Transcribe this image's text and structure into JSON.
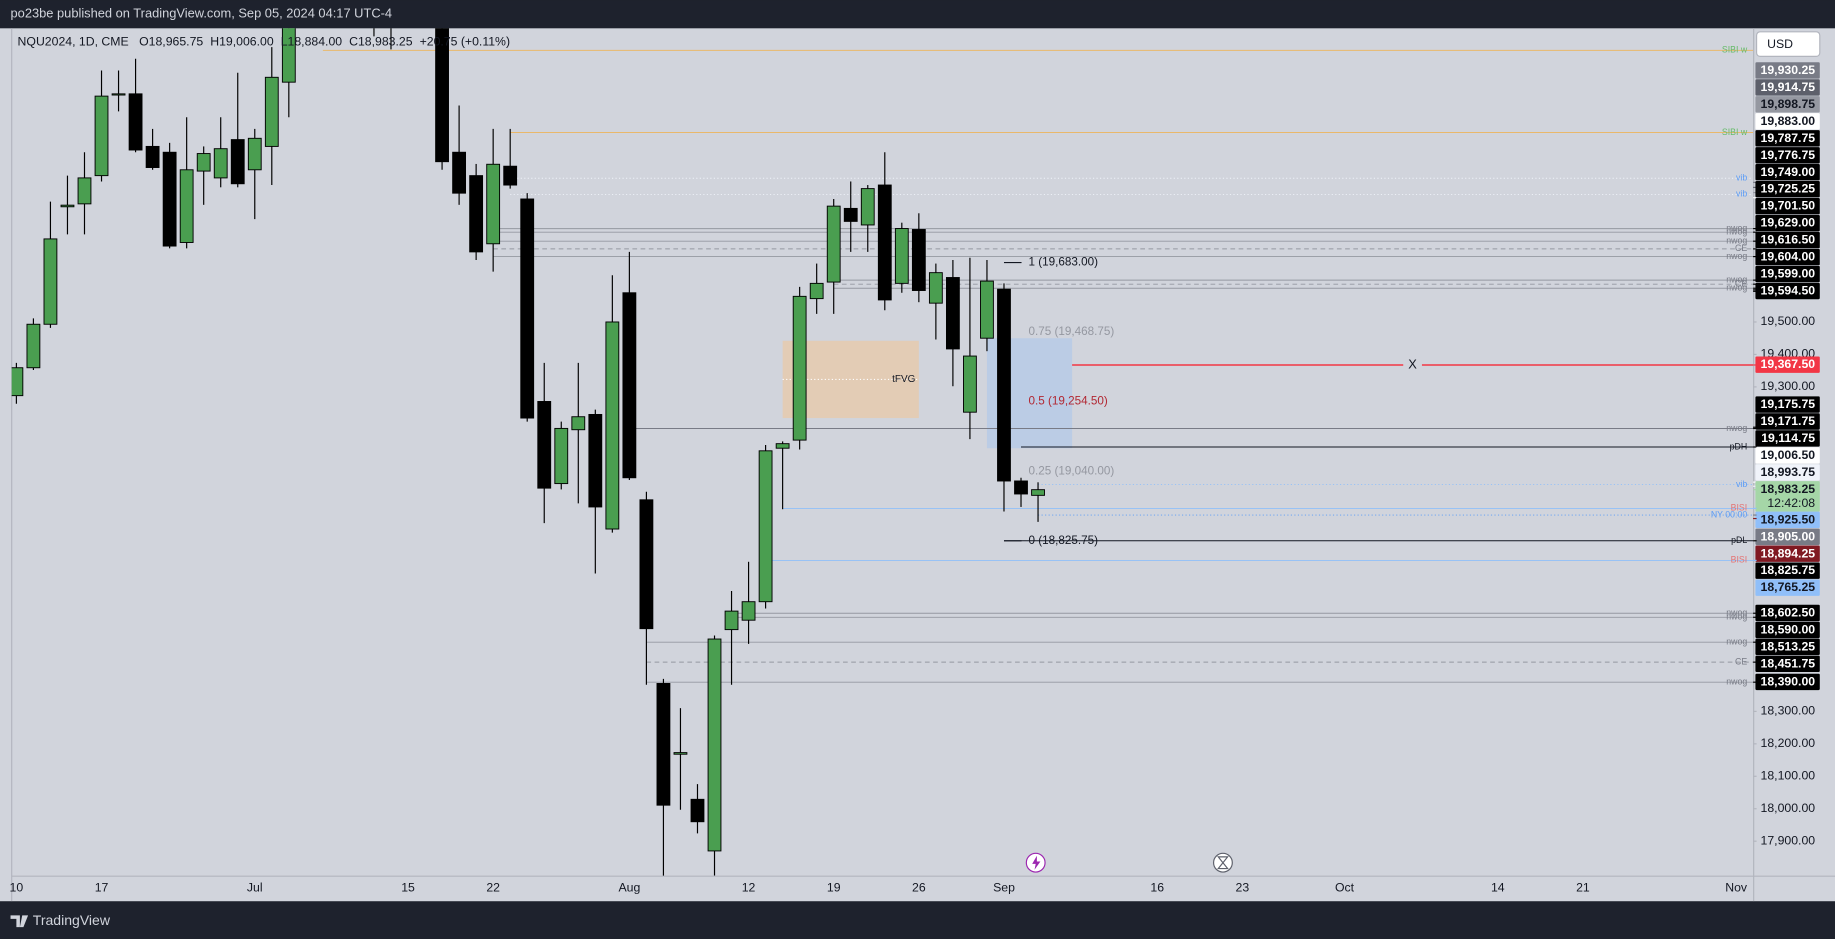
{
  "header": {
    "publisher": "po23be published on TradingView.com, Sep 05, 2024 04:17 UTC-4",
    "brand": "TradingView"
  },
  "chart_data": {
    "type": "candlestick",
    "title": "NQU2024, 1D, CME",
    "ohlc_legend": [
      "O18,965.75",
      "H19,006.00",
      "L18,884.00",
      "C18,983.25",
      "+20.75 (+0.11%)"
    ],
    "currency": "USD",
    "up_color": "#4a9e50",
    "down_color": "#000000",
    "wick_color": "#000000",
    "categories": [
      "10",
      null,
      null,
      null,
      null,
      "17",
      null,
      null,
      null,
      null,
      null,
      null,
      null,
      null,
      "Jul",
      null,
      null,
      null,
      null,
      null,
      null,
      null,
      null,
      "15",
      null,
      null,
      null,
      null,
      "22",
      null,
      null,
      null,
      null,
      null,
      null,
      null,
      "Aug",
      null,
      null,
      null,
      null,
      null,
      null,
      "12",
      null,
      null,
      null,
      null,
      "19",
      null,
      null,
      null,
      null,
      "26",
      null,
      null,
      null,
      null,
      "Sep",
      null,
      null,
      null,
      null,
      null,
      null,
      null,
      null,
      "16",
      null,
      null,
      null,
      null,
      "23",
      null,
      null,
      null,
      null,
      null,
      "Oct",
      null,
      null,
      null,
      null,
      null,
      null,
      null,
      null,
      "14",
      null,
      null,
      null,
      null,
      "21",
      null,
      null,
      null,
      null,
      null,
      null,
      null,
      null,
      "Nov"
    ],
    "open": [
      19273,
      19359,
      19493,
      19855,
      19864,
      19951,
      20200,
      20203,
      20041,
      20023,
      19745,
      19965,
      19944,
      20062,
      19969,
      20041,
      20239,
      20420,
      20620,
      20700,
      20860,
      20990,
      20450,
      20560,
      20600,
      20520,
      20023,
      19951,
      19741,
      19980,
      19879,
      19255,
      19002,
      19168,
      19215,
      18862,
      19590,
      18952,
      18386,
      18168,
      18029,
      17870,
      18552,
      18581,
      18638,
      19111,
      19136,
      19572,
      19623,
      19850,
      19799,
      19922,
      19619,
      19785,
      19558,
      19637,
      19222,
      19450,
      19601,
      19010,
      18965.75,
      null,
      null,
      null,
      null,
      null,
      null,
      null,
      null,
      null,
      null,
      null,
      null,
      null,
      null,
      null,
      null,
      null,
      null,
      null,
      null,
      null,
      null,
      null,
      null,
      null,
      null,
      null,
      null,
      null,
      null,
      null,
      null,
      null,
      null,
      null,
      null,
      null,
      null,
      null,
      null,
      null
    ],
    "high": [
      19374,
      19511,
      19871,
      19951,
      20023,
      20275,
      20275,
      20311,
      20095,
      20052,
      20131,
      20041,
      20131,
      20268,
      20095,
      20347,
      20480,
      20660,
      20720,
      20880,
      21020,
      21040,
      20690,
      20750,
      20700,
      20600,
      20167,
      19987,
      20095,
      20095,
      19897,
      19374,
      19193,
      19374,
      19230,
      19644,
      19716,
      18977,
      18400,
      18310,
      18076,
      18534,
      18671,
      18761,
      19121,
      19132,
      19608,
      19680,
      19879,
      19933,
      19922,
      20023,
      19806,
      19835,
      19680,
      19691,
      19698,
      19691,
      19619,
      19020,
      19006,
      null,
      null,
      null,
      null,
      null,
      null,
      null,
      null,
      null,
      null,
      null,
      null,
      null,
      null,
      null,
      null,
      null,
      null,
      null,
      null,
      null,
      null,
      null,
      null,
      null,
      null,
      null,
      null,
      null,
      null,
      null,
      null,
      null,
      null,
      null,
      null,
      null,
      null,
      null,
      null,
      null
    ],
    "low": [
      19248,
      19352,
      19482,
      19770,
      19770,
      19933,
      20149,
      20023,
      19969,
      19727,
      19727,
      19861,
      19915,
      19915,
      19817,
      19922,
      20131,
      20410,
      20580,
      20680,
      20830,
      20380,
      20340,
      20480,
      20430,
      19969,
      19861,
      19691,
      19655,
      19911,
      19193,
      18880,
      18984,
      18941,
      18725,
      18851,
      19013,
      18382,
      17780,
      17997,
      17924,
      17794,
      18382,
      18508,
      18617,
      18923,
      19107,
      19525,
      19525,
      19716,
      19716,
      19536,
      19590,
      19561,
      19446,
      19302,
      19139,
      19410,
      18916,
      18930,
      18884,
      null,
      null,
      null,
      null,
      null,
      null,
      null,
      null,
      null,
      null,
      null,
      null,
      null,
      null,
      null,
      null,
      null,
      null,
      null,
      null,
      null,
      null,
      null,
      null,
      null,
      null,
      null,
      null,
      null,
      null,
      null,
      null,
      null,
      null,
      null,
      null,
      null,
      null,
      null,
      null,
      null
    ],
    "close": [
      19359,
      19493,
      19756,
      19860,
      19944,
      20196,
      20203,
      20030,
      19976,
      19734,
      19969,
      20019,
      20034,
      19926,
      20066,
      20254,
      20420,
      20620,
      20700,
      20860,
      20990,
      20450,
      20560,
      20600,
      20660,
      19994,
      19897,
      19716,
      19986,
      19922,
      19204,
      18988,
      19172,
      19208,
      18930,
      19500,
      19020,
      18555,
      18011,
      18173,
      17960,
      18523,
      18609,
      18638,
      19103,
      19125,
      19579,
      19619,
      19857,
      19810,
      19911,
      19568,
      19788,
      19597,
      19652,
      19417,
      19395,
      19626,
      19010,
      18970,
      18983.25,
      null,
      null,
      null,
      null,
      null,
      null,
      null,
      null,
      null,
      null,
      null,
      null,
      null,
      null,
      null,
      null,
      null,
      null,
      null,
      null,
      null,
      null,
      null,
      null,
      null,
      null,
      null,
      null,
      null,
      null,
      null,
      null,
      null,
      null,
      null,
      null,
      null,
      null,
      null,
      null,
      null
    ],
    "ylim": [
      17794,
      20405
    ],
    "yticks": [
      {
        "value": 17900,
        "label": "17,900.00"
      },
      {
        "value": 18000,
        "label": "18,000.00"
      },
      {
        "value": 18100,
        "label": "18,100.00"
      },
      {
        "value": 18200,
        "label": "18,200.00"
      },
      {
        "value": 18300,
        "label": "18,300.00"
      },
      {
        "value": 19300,
        "label": "19,300.00"
      },
      {
        "value": 19400,
        "label": "19,400.00"
      },
      {
        "value": 19500,
        "label": "19,500.00"
      }
    ],
    "price_labels": [
      {
        "value": 19930.25,
        "label": "19,930.25",
        "bg": "#787b86",
        "fg": "#ffffff"
      },
      {
        "value": 19914.75,
        "label": "19,914.75",
        "bg": "#5d606b",
        "fg": "#ffffff"
      },
      {
        "value": 19898.75,
        "label": "19,898.75",
        "bg": "#9598a1",
        "fg": "#131722"
      },
      {
        "value": 19883,
        "label": "19,883.00",
        "bg": "#ffffff",
        "fg": "#131722"
      },
      {
        "value": 19787.75,
        "label": "19,787.75",
        "bg": "#000000",
        "fg": "#ffffff"
      },
      {
        "value": 19776.75,
        "label": "19,776.75",
        "bg": "#000000",
        "fg": "#ffffff"
      },
      {
        "value": 19749,
        "label": "19,749.00",
        "bg": "#000000",
        "fg": "#ffffff"
      },
      {
        "value": 19725.25,
        "label": "19,725.25",
        "bg": "#000000",
        "fg": "#ffffff"
      },
      {
        "value": 19701.5,
        "label": "19,701.50",
        "bg": "#000000",
        "fg": "#ffffff"
      },
      {
        "value": 19629,
        "label": "19,629.00",
        "bg": "#000000",
        "fg": "#ffffff"
      },
      {
        "value": 19616.5,
        "label": "19,616.50",
        "bg": "#000000",
        "fg": "#ffffff"
      },
      {
        "value": 19604,
        "label": "19,604.00",
        "bg": "#000000",
        "fg": "#ffffff"
      },
      {
        "value": 19599,
        "label": "19,599.00",
        "bg": "#000000",
        "fg": "#ffffff"
      },
      {
        "value": 19594.5,
        "label": "19,594.50",
        "bg": "#000000",
        "fg": "#ffffff"
      },
      {
        "value": 19367.5,
        "label": "19,367.50",
        "bg": "#f23645",
        "fg": "#ffffff"
      },
      {
        "value": 19175.75,
        "label": "19,175.75",
        "bg": "#000000",
        "fg": "#ffffff"
      },
      {
        "value": 19171.75,
        "label": "19,171.75",
        "bg": "#000000",
        "fg": "#ffffff"
      },
      {
        "value": 19114.75,
        "label": "19,114.75",
        "bg": "#000000",
        "fg": "#ffffff"
      },
      {
        "value": 19006.5,
        "label": "19,006.50",
        "bg": "#ffffff",
        "fg": "#131722"
      },
      {
        "value": 18993.75,
        "label": "18,993.75",
        "bg": "#f0f3fa",
        "fg": "#131722"
      },
      {
        "value": 18983.25,
        "label": "18,983.25",
        "countdown": "12:42:08",
        "bg": "#a5d6a7",
        "fg": "#131722"
      },
      {
        "value": 18925.5,
        "label": "18,925.50",
        "bg": "#90bff9",
        "fg": "#131722"
      },
      {
        "value": 18905,
        "label": "18,905.00",
        "bg": "#787b86",
        "fg": "#ffffff"
      },
      {
        "value": 18894.25,
        "label": "18,894.25",
        "bg": "#801922",
        "fg": "#ffffff"
      },
      {
        "value": 18825.75,
        "label": "18,825.75",
        "bg": "#000000",
        "fg": "#ffffff"
      },
      {
        "value": 18765.25,
        "label": "18,765.25",
        "bg": "#90bff9",
        "fg": "#131722"
      },
      {
        "value": 18602.5,
        "label": "18,602.50",
        "bg": "#000000",
        "fg": "#ffffff"
      },
      {
        "value": 18590,
        "label": "18,590.00",
        "bg": "#000000",
        "fg": "#ffffff"
      },
      {
        "value": 18513.25,
        "label": "18,513.25",
        "bg": "#000000",
        "fg": "#ffffff"
      },
      {
        "value": 18451.75,
        "label": "18,451.75",
        "bg": "#000000",
        "fg": "#ffffff"
      },
      {
        "value": 18390,
        "label": "18,390.00",
        "bg": "#000000",
        "fg": "#ffffff"
      }
    ],
    "levels": [
      {
        "label": "SIBI w",
        "value": 20337,
        "color": "#e9b86b",
        "label_color": "#66bb6a",
        "start_bar": 18
      },
      {
        "label": "SIBI w",
        "value": 20084,
        "color": "#e9b86b",
        "label_color": "#66bb6a",
        "start_bar": 29
      },
      {
        "label": "vib",
        "value": 19943,
        "color": "#f0f3fa",
        "label_color": "#5b9cf6",
        "dash": "1 2",
        "start_bar": 29
      },
      {
        "label": "vib",
        "value": 19893,
        "color": "#f0f3fa",
        "label_color": "#5b9cf6",
        "dash": "1 2",
        "start_bar": 29
      },
      {
        "label": "nwog",
        "value": 19787.75,
        "color": "#9598a1",
        "label_color": "#787b86",
        "start_bar": 28
      },
      {
        "label": "nwog",
        "value": 19776.75,
        "color": "#9598a1",
        "label_color": "#787b86",
        "start_bar": 28
      },
      {
        "label": "nwog",
        "value": 19749,
        "color": "#9598a1",
        "label_color": "#787b86",
        "start_bar": 28
      },
      {
        "label": "CE",
        "value": 19725.25,
        "color": "#9598a1",
        "label_color": "#787b86",
        "dash": "4 3",
        "start_bar": 28
      },
      {
        "label": "nwog",
        "value": 19701.5,
        "color": "#9598a1",
        "label_color": "#787b86",
        "start_bar": 28
      },
      {
        "label": "nwog",
        "value": 19629,
        "color": "#9598a1",
        "label_color": "#787b86",
        "start_bar": 48
      },
      {
        "label": "CE",
        "value": 19616.5,
        "color": "#9598a1",
        "label_color": "#787b86",
        "dash": "4 3",
        "start_bar": 48
      },
      {
        "label": "nwog",
        "value": 19604,
        "color": "#9598a1",
        "label_color": "#787b86",
        "start_bar": 48
      },
      {
        "label": "nwog",
        "value": 19171.75,
        "color": "#787b86",
        "label_color": "#787b86",
        "start_bar": 36
      },
      {
        "label": "pDH",
        "value": 19114.75,
        "color": "#131722",
        "label_color": "#131722",
        "start_bar": 59
      },
      {
        "label": "vib",
        "value": 18999,
        "color": "#90bff9",
        "label_color": "#5b9cf6",
        "dash": "1 2",
        "start_bar": 60
      },
      {
        "label": "BISI",
        "value": 18925.5,
        "color": "#90bff9",
        "label_color": "#e57373",
        "start_bar": 45
      },
      {
        "label": "NY 00:00",
        "value": 18905,
        "color": "#5b9cf6",
        "label_color": "#5b9cf6",
        "dash": "1 2",
        "start_bar": 60
      },
      {
        "label": "pDL",
        "value": 18825.75,
        "color": "#131722",
        "label_color": "#131722",
        "start_bar": 58
      },
      {
        "label": "BISI",
        "value": 18765.25,
        "color": "#90bff9",
        "label_color": "#e57373",
        "start_bar": 44
      },
      {
        "label": "nwog",
        "value": 18602.5,
        "color": "#9598a1",
        "label_color": "#787b86",
        "start_bar": 42
      },
      {
        "label": "nwog",
        "value": 18590,
        "color": "#9598a1",
        "label_color": "#787b86",
        "start_bar": 42
      },
      {
        "label": "nwog",
        "value": 18513.25,
        "color": "#9598a1",
        "label_color": "#787b86",
        "start_bar": 37
      },
      {
        "label": "CE",
        "value": 18451.75,
        "color": "#9598a1",
        "label_color": "#787b86",
        "dash": "4 3",
        "start_bar": 37
      },
      {
        "label": "nwog",
        "value": 18390,
        "color": "#9598a1",
        "label_color": "#787b86",
        "start_bar": 37
      }
    ],
    "marker_line": {
      "label": "X",
      "value": 19367.5,
      "color": "#f23645",
      "start_bar": 62
    },
    "fib": {
      "start_bar": 58,
      "levels": [
        {
          "value": 19683,
          "label": "1 (19,683.00)",
          "color": "#131722",
          "line": true
        },
        {
          "value": 19468.75,
          "label": "0.75 (19,468.75)",
          "color": "#9598a1"
        },
        {
          "value": 19254.5,
          "label": "0.5 (19,254.50)",
          "color": "#b22833"
        },
        {
          "value": 19040,
          "label": "0.25 (19,040.00)",
          "color": "#9598a1"
        },
        {
          "value": 18825.75,
          "label": "0 (18,825.75)",
          "color": "#131722",
          "line": true
        }
      ]
    },
    "boxes": [
      {
        "label": "tFVG",
        "top": 19442,
        "bottom": 19204,
        "start_bar": 45,
        "end_bar": 53,
        "color": "#e8c9a8"
      },
      {
        "top": 19450,
        "bottom": 19111,
        "start_bar": 57,
        "end_bar": 62,
        "color": "#b3c9e8"
      }
    ]
  }
}
